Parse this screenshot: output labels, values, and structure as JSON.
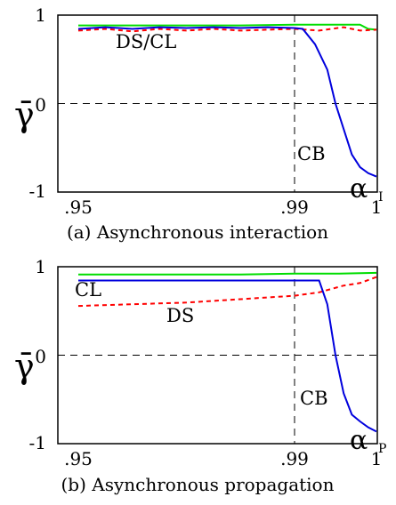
{
  "chart_data": [
    {
      "type": "line",
      "caption": "(a) Asynchronous interaction",
      "ylabel": "γ̄",
      "xlabel": "α",
      "xlabel_sub": "I",
      "x_ticks": [
        ".95",
        ".99",
        "1"
      ],
      "y_ticks": [
        "1",
        "0",
        "-1"
      ],
      "xlim": [
        0.95,
        1.0
      ],
      "ylim": [
        -1,
        1
      ],
      "annotations": [
        "DS/CL",
        "CB"
      ],
      "colors": {
        "green": "#00dd00",
        "red": "#ff0000",
        "blue": "#0000dd"
      },
      "series": [
        {
          "color": "green",
          "dash": false,
          "x": [
            0.95,
            0.96,
            0.97,
            0.98,
            0.99,
            0.996,
            0.997,
            0.998,
            0.999,
            1.0
          ],
          "y": [
            0.92,
            0.92,
            0.92,
            0.92,
            0.93,
            0.93,
            0.93,
            0.93,
            0.88,
            0.87
          ]
        },
        {
          "color": "red",
          "dash": true,
          "x": [
            0.95,
            0.955,
            0.96,
            0.965,
            0.97,
            0.975,
            0.98,
            0.985,
            0.99,
            0.993,
            0.996,
            0.998,
            1.0
          ],
          "y": [
            0.86,
            0.88,
            0.85,
            0.88,
            0.86,
            0.88,
            0.86,
            0.87,
            0.88,
            0.86,
            0.9,
            0.86,
            0.87
          ]
        },
        {
          "color": "blue",
          "dash": false,
          "x": [
            0.95,
            0.955,
            0.96,
            0.965,
            0.97,
            0.975,
            0.98,
            0.985,
            0.99,
            0.991,
            0.9925,
            0.994,
            0.995,
            0.996,
            0.997,
            0.998,
            0.999,
            1.0
          ],
          "y": [
            0.88,
            0.9,
            0.88,
            0.9,
            0.89,
            0.9,
            0.89,
            0.9,
            0.89,
            0.88,
            0.7,
            0.4,
            0.0,
            -0.3,
            -0.6,
            -0.75,
            -0.82,
            -0.86
          ]
        }
      ],
      "vline_x": 0.99
    },
    {
      "type": "line",
      "caption": "(b) Asynchronous propagation",
      "ylabel": "γ̄",
      "xlabel": "α",
      "xlabel_sub": "P",
      "x_ticks": [
        ".95",
        ".99",
        "1"
      ],
      "y_ticks": [
        "1",
        "0",
        "-1"
      ],
      "xlim": [
        0.95,
        1.0
      ],
      "ylim": [
        -1,
        1
      ],
      "annotations": [
        "CL",
        "DS",
        "CB"
      ],
      "colors": {
        "green": "#00dd00",
        "red": "#ff0000",
        "blue": "#0000dd"
      },
      "series": [
        {
          "color": "green",
          "dash": false,
          "x": [
            0.95,
            0.96,
            0.97,
            0.98,
            0.99,
            0.995,
            1.0
          ],
          "y": [
            0.95,
            0.95,
            0.95,
            0.95,
            0.96,
            0.96,
            0.97
          ]
        },
        {
          "color": "red",
          "dash": true,
          "x": [
            0.95,
            0.96,
            0.97,
            0.98,
            0.99,
            0.993,
            0.996,
            0.998,
            1.0
          ],
          "y": [
            0.58,
            0.6,
            0.62,
            0.66,
            0.7,
            0.74,
            0.82,
            0.85,
            0.92
          ]
        },
        {
          "color": "blue",
          "dash": false,
          "x": [
            0.95,
            0.96,
            0.97,
            0.98,
            0.99,
            0.993,
            0.994,
            0.995,
            0.996,
            0.997,
            0.998,
            0.999,
            1.0
          ],
          "y": [
            0.88,
            0.88,
            0.88,
            0.88,
            0.88,
            0.88,
            0.6,
            0.0,
            -0.45,
            -0.7,
            -0.78,
            -0.85,
            -0.9
          ]
        }
      ],
      "vline_x": 0.99
    }
  ]
}
